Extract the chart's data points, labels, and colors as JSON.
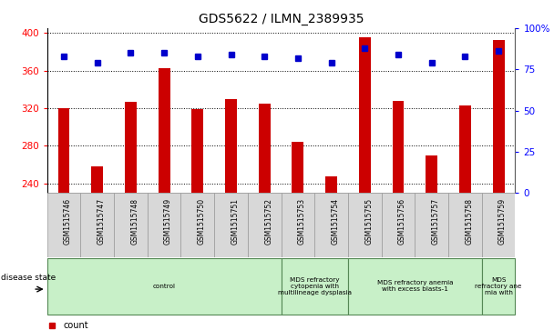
{
  "title": "GDS5622 / ILMN_2389935",
  "samples": [
    "GSM1515746",
    "GSM1515747",
    "GSM1515748",
    "GSM1515749",
    "GSM1515750",
    "GSM1515751",
    "GSM1515752",
    "GSM1515753",
    "GSM1515754",
    "GSM1515755",
    "GSM1515756",
    "GSM1515757",
    "GSM1515758",
    "GSM1515759"
  ],
  "counts": [
    320,
    258,
    327,
    362,
    319,
    330,
    325,
    284,
    248,
    395,
    328,
    270,
    323,
    392
  ],
  "percentile_ranks": [
    83,
    79,
    85,
    85,
    83,
    84,
    83,
    82,
    79,
    88,
    84,
    79,
    83,
    86
  ],
  "ylim_left": [
    230,
    405
  ],
  "ylim_right": [
    0,
    100
  ],
  "yticks_left": [
    240,
    280,
    320,
    360,
    400
  ],
  "yticks_right": [
    0,
    25,
    50,
    75,
    100
  ],
  "bar_color": "#cc0000",
  "dot_color": "#0000cc",
  "bar_width": 0.35,
  "disease_groups": [
    {
      "label": "control",
      "start": 0,
      "end": 7,
      "color": "#c8f0c8"
    },
    {
      "label": "MDS refractory\ncytopenia with\nmultilineage dysplasia",
      "start": 7,
      "end": 9,
      "color": "#c8f0c8"
    },
    {
      "label": "MDS refractory anemia\nwith excess blasts-1",
      "start": 9,
      "end": 13,
      "color": "#c8f0c8"
    },
    {
      "label": "MDS\nrefractory ane\nmia with",
      "start": 13,
      "end": 14,
      "color": "#c8f0c8"
    }
  ],
  "background_color": "#ffffff",
  "tick_label_area_color": "#d8d8d8",
  "label_box_edge_color": "#aaaaaa"
}
